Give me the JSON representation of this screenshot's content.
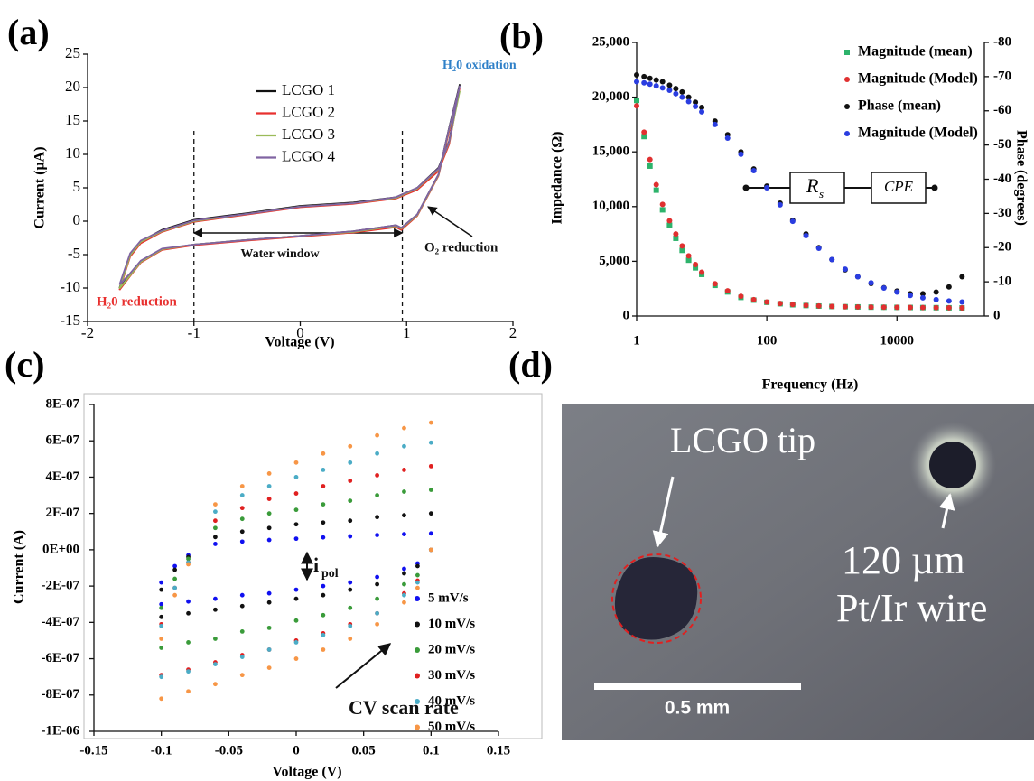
{
  "chart_data": [
    {
      "type": "line",
      "label": "(a)",
      "x_label": "Voltage (V)",
      "y_label": "Current (µA)",
      "xlim": [
        -2,
        2
      ],
      "xticks": [
        -2,
        -1,
        0,
        1,
        2
      ],
      "ylim": [
        -15,
        25
      ],
      "yticks": [
        -15,
        -10,
        -5,
        0,
        5,
        10,
        15,
        20,
        25
      ],
      "reference_lines": [
        -1,
        0.96
      ],
      "x": [
        -1.7,
        -1.6,
        -1.5,
        -1.3,
        -1,
        -0.5,
        0,
        0.5,
        0.9,
        1.1,
        1.3,
        1.4,
        1.5,
        1.4,
        1.3,
        1.1,
        0.95,
        0.9,
        0.5,
        0,
        -0.5,
        -1,
        -1.3,
        -1.5,
        -1.6,
        -1.7
      ],
      "series": [
        {
          "name": "LCGO 1",
          "color": "#111111",
          "values": [
            -10,
            -5,
            -3,
            -1.3,
            0.2,
            1.2,
            2.3,
            2.8,
            3.6,
            5,
            8,
            12,
            20.5,
            14,
            7,
            1,
            -1,
            -0.6,
            -1.5,
            -2.2,
            -2.8,
            -3.5,
            -4.2,
            -6,
            -8,
            -10
          ]
        },
        {
          "name": "LCGO 2",
          "color": "#e8302f",
          "values": [
            -10.3,
            -5.3,
            -3.3,
            -1.6,
            -0.1,
            1,
            2.1,
            2.6,
            3.4,
            4.7,
            7.5,
            11.5,
            20,
            13.5,
            6.8,
            0.8,
            -1.3,
            -0.9,
            -1.7,
            -2.3,
            -2.9,
            -3.6,
            -4.3,
            -6.2,
            -8.2,
            -10.3
          ]
        },
        {
          "name": "LCGO 3",
          "color": "#9bbb59",
          "values": [
            -10.1,
            -5.1,
            -3.1,
            -1.5,
            0,
            1.1,
            2.2,
            2.7,
            3.5,
            4.9,
            7.8,
            11.8,
            19.5,
            13.8,
            6.9,
            0.9,
            -1.1,
            -0.7,
            -1.6,
            -2.2,
            -2.8,
            -3.5,
            -4.2,
            -6.1,
            -8.1,
            -10.1
          ]
        },
        {
          "name": "LCGO 4",
          "color": "#8064a2",
          "values": [
            -9.5,
            -4.8,
            -2.9,
            -1.4,
            0.1,
            1.1,
            2.2,
            2.7,
            3.6,
            5,
            7.9,
            11.9,
            20.3,
            13.9,
            7,
            1,
            -1,
            -0.6,
            -1.5,
            -2.2,
            -2.8,
            -3.5,
            -4.1,
            -5.9,
            -7.8,
            -9.5
          ]
        }
      ],
      "annotations": [
        {
          "text": "H₂0 oxidation",
          "color": "#2f80c8"
        },
        {
          "text": "H₂0 reduction",
          "color": "#e8302f"
        },
        {
          "text": "Water window",
          "color": "#111111"
        },
        {
          "text": "O₂ reduction",
          "color": "#111111"
        }
      ]
    },
    {
      "type": "scatter",
      "label": "(b)",
      "x_label": "Frequency (Hz)",
      "y_label": "Impedance (Ω)",
      "y2_label": "Phase (degrees)",
      "xlog": true,
      "xlim": [
        1,
        220000
      ],
      "xticks": [
        1,
        100,
        10000
      ],
      "ylim": [
        0,
        25000
      ],
      "yticks": [
        0,
        {
          "value": 5000,
          "label": "5,000"
        },
        {
          "value": 10000,
          "label": "10,000"
        },
        {
          "value": 15000,
          "label": "15,000"
        },
        {
          "value": 20000,
          "label": "20,000"
        },
        {
          "value": 25000,
          "label": "25,000"
        }
      ],
      "y2lim": [
        0,
        -80
      ],
      "y2ticks": [
        0,
        -10,
        -20,
        -30,
        -40,
        -50,
        -60,
        -70,
        -80
      ],
      "x": [
        1,
        1.3,
        1.6,
        2,
        2.5,
        3.2,
        4,
        5,
        6.3,
        8,
        10,
        16,
        25,
        40,
        63,
        100,
        160,
        250,
        400,
        630,
        1000,
        1600,
        2500,
        4000,
        6300,
        10000,
        16000,
        25000,
        40000,
        63000,
        100000
      ],
      "series": [
        {
          "name": "Magnitude (mean)",
          "color": "#2db36b",
          "marker": "square",
          "values": [
            19700,
            16400,
            13700,
            11500,
            9700,
            8300,
            7100,
            6000,
            5100,
            4400,
            3800,
            2800,
            2200,
            1700,
            1450,
            1250,
            1120,
            1030,
            960,
            910,
            870,
            850,
            830,
            810,
            800,
            790,
            780,
            770,
            760,
            750,
            740
          ]
        },
        {
          "name": "Magnitude (Model)",
          "color": "#e03030",
          "marker": "circle",
          "values": [
            19200,
            16800,
            14300,
            12000,
            10200,
            8700,
            7500,
            6400,
            5500,
            4700,
            4000,
            2950,
            2300,
            1800,
            1500,
            1280,
            1140,
            1050,
            970,
            920,
            880,
            850,
            830,
            810,
            800,
            790,
            780,
            770,
            760,
            750,
            740
          ]
        },
        {
          "name": "Phase (mean)",
          "color": "#111111",
          "marker": "circle",
          "axis": "y2",
          "values": [
            -70.5,
            -70,
            -69.5,
            -69,
            -68.5,
            -67.5,
            -66.5,
            -65.5,
            -64,
            -62.5,
            -61,
            -57,
            -53,
            -48,
            -43,
            -38,
            -33,
            -28,
            -24,
            -20,
            -16.5,
            -13.5,
            -11.5,
            -9.5,
            -8.3,
            -7.3,
            -6.5,
            -6.5,
            -7,
            -8.5,
            -11.5
          ]
        },
        {
          "name": "Magnitude (Model)",
          "color": "#2a3de0",
          "marker": "circle",
          "axis": "y2",
          "values": [
            -68.5,
            -68.2,
            -67.8,
            -67.3,
            -66.7,
            -66,
            -65,
            -64,
            -62.7,
            -61.3,
            -59.7,
            -56,
            -52,
            -47.3,
            -42.5,
            -37.5,
            -32.5,
            -27.7,
            -23.5,
            -19.8,
            -16.5,
            -13.7,
            -11.5,
            -9.7,
            -8.2,
            -7,
            -6,
            -5.3,
            -4.8,
            -4.4,
            -4.1
          ]
        }
      ],
      "circuit": [
        "R",
        "s",
        "CPE"
      ]
    },
    {
      "type": "scatter",
      "label": "(c)",
      "x_label": "Voltage (V)",
      "y_label": "Current (A)",
      "xlim": [
        -0.15,
        0.15
      ],
      "xticks": [
        -0.15,
        -0.1,
        -0.05,
        0,
        0.05,
        0.1,
        0.15
      ],
      "ylim": [
        -1e-06,
        8e-07
      ],
      "yticks": [
        {
          "value": -1e-06,
          "label": "-1E-06"
        },
        {
          "value": -8e-07,
          "label": "-8E-07"
        },
        {
          "value": -6e-07,
          "label": "-6E-07"
        },
        {
          "value": -4e-07,
          "label": "-4E-07"
        },
        {
          "value": -2e-07,
          "label": "-2E-07"
        },
        {
          "value": 0,
          "label": "0E+00"
        },
        {
          "value": 2e-07,
          "label": "2E-07"
        },
        {
          "value": 4e-07,
          "label": "4E-07"
        },
        {
          "value": 6e-07,
          "label": "6E-07"
        },
        {
          "value": 8e-07,
          "label": "8E-07"
        }
      ],
      "x": [
        -0.1,
        -0.09,
        -0.08,
        -0.06,
        -0.04,
        -0.02,
        0,
        0.02,
        0.04,
        0.06,
        0.08,
        0.1,
        0.1,
        0.09,
        0.08,
        0.06,
        0.04,
        0.02,
        0,
        -0.02,
        -0.04,
        -0.06,
        -0.08,
        -0.1
      ],
      "series": [
        {
          "name": "5 mV/s",
          "color": "#1010f0",
          "values": [
            -1.8e-07,
            -9e-08,
            -3e-08,
            3.2e-08,
            4.5e-08,
            5.4e-08,
            6.1e-08,
            6.8e-08,
            7.4e-08,
            8.1e-08,
            8.6e-08,
            9e-08,
            0,
            -7.5e-08,
            -1.05e-07,
            -1.5e-07,
            -1.8e-07,
            -2e-07,
            -2.2e-07,
            -2.4e-07,
            -2.5e-07,
            -2.7e-07,
            -2.85e-07,
            -3e-07
          ]
        },
        {
          "name": "10 mV/s",
          "color": "#111111",
          "values": [
            -2.2e-07,
            -1.1e-07,
            -4e-08,
            7e-08,
            1e-07,
            1.2e-07,
            1.4e-07,
            1.5e-07,
            1.6e-07,
            1.8e-07,
            1.9e-07,
            2e-07,
            0,
            -9e-08,
            -1.3e-07,
            -1.9e-07,
            -2.2e-07,
            -2.5e-07,
            -2.7e-07,
            -2.9e-07,
            -3.1e-07,
            -3.3e-07,
            -3.5e-07,
            -3.7e-07
          ]
        },
        {
          "name": "20 mV/s",
          "color": "#3a9b3a",
          "values": [
            -3.2e-07,
            -1.6e-07,
            -5e-08,
            1.2e-07,
            1.7e-07,
            2e-07,
            2.2e-07,
            2.5e-07,
            2.7e-07,
            3e-07,
            3.2e-07,
            3.3e-07,
            0,
            -1.4e-07,
            -1.9e-07,
            -2.7e-07,
            -3.2e-07,
            -3.6e-07,
            -3.9e-07,
            -4.3e-07,
            -4.5e-07,
            -4.9e-07,
            -5.1e-07,
            -5.4e-07
          ]
        },
        {
          "name": "30 mV/s",
          "color": "#e02020",
          "values": [
            -4.1e-07,
            -2.1e-07,
            -7e-08,
            1.6e-07,
            2.3e-07,
            2.8e-07,
            3.1e-07,
            3.5e-07,
            3.8e-07,
            4.1e-07,
            4.4e-07,
            4.6e-07,
            0,
            -1.7e-07,
            -2.4e-07,
            -3.5e-07,
            -4.1e-07,
            -4.6e-07,
            -5e-07,
            -5.5e-07,
            -5.8e-07,
            -6.2e-07,
            -6.6e-07,
            -6.9e-07
          ]
        },
        {
          "name": "40 mV/s",
          "color": "#4bacc6",
          "values": [
            -4.2e-07,
            -2.1e-07,
            -7e-08,
            2.1e-07,
            3e-07,
            3.5e-07,
            4e-07,
            4.4e-07,
            4.8e-07,
            5.3e-07,
            5.7e-07,
            5.9e-07,
            0,
            -1.8e-07,
            -2.5e-07,
            -3.5e-07,
            -4.2e-07,
            -4.7e-07,
            -5.1e-07,
            -5.5e-07,
            -5.9e-07,
            -6.3e-07,
            -6.7e-07,
            -7e-07
          ]
        },
        {
          "name": "50 mV/s",
          "color": "#f79646",
          "values": [
            -4.9e-07,
            -2.5e-07,
            -8e-08,
            2.5e-07,
            3.5e-07,
            4.2e-07,
            4.8e-07,
            5.3e-07,
            5.7e-07,
            6.3e-07,
            6.7e-07,
            7e-07,
            0,
            -2.1e-07,
            -2.9e-07,
            -4.1e-07,
            -4.9e-07,
            -5.5e-07,
            -6e-07,
            -6.5e-07,
            -6.9e-07,
            -7.4e-07,
            -7.8e-07,
            -8.2e-07
          ]
        }
      ],
      "annotations": [
        {
          "text": "i",
          "color": "#111111"
        },
        {
          "text": "pol",
          "color": "#111111"
        },
        {
          "text": "CV scan rate",
          "color": "#111111"
        }
      ]
    },
    {
      "type": "image",
      "label": "(d)",
      "annotations": [
        {
          "text": "LCGO tip",
          "color": "#ffffff"
        },
        {
          "text": "120 µm",
          "color": "#ffffff"
        },
        {
          "text": "Pt/Ir wire",
          "color": "#ffffff"
        },
        {
          "text": "0.5 mm",
          "color": "#ffffff"
        }
      ]
    }
  ]
}
